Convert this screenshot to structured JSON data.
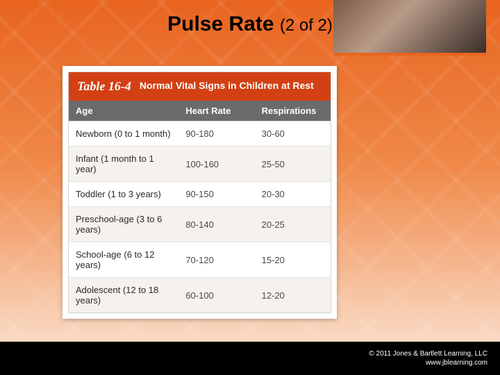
{
  "slide": {
    "title_main": "Pulse Rate",
    "title_sub": "(2 of 2)"
  },
  "table": {
    "number": "Table 16-4",
    "caption": "Normal Vital Signs in Children at Rest",
    "columns": [
      "Age",
      "Heart Rate",
      "Respirations"
    ],
    "rows": [
      [
        "Newborn (0 to 1 month)",
        "90-180",
        "30-60"
      ],
      [
        "Infant (1 month to 1 year)",
        "100-160",
        "25-50"
      ],
      [
        "Toddler (1 to 3 years)",
        "90-150",
        "20-30"
      ],
      [
        "Preschool-age (3 to 6 years)",
        "80-140",
        "20-25"
      ],
      [
        "School-age (6 to 12 years)",
        "70-120",
        "15-20"
      ],
      [
        "Adolescent (12 to 18 years)",
        "60-100",
        "12-20"
      ]
    ]
  },
  "credit": {
    "line1": "© 2011 Jones & Bartlett Learning, LLC",
    "line2": "www.jblearning.com"
  },
  "colors": {
    "bg_top": "#e8641f",
    "bg_bottom": "#fbe9dc",
    "table_title_bg": "#d24014",
    "table_header_bg": "#6a6b6d",
    "row_alt": "#f5f1ec",
    "bottom_bar": "#000000"
  }
}
